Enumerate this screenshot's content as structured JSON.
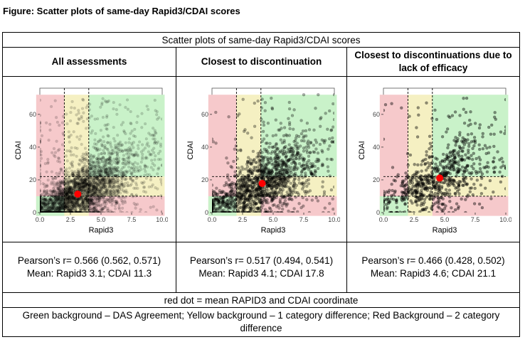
{
  "figure_title": "Figure: Scatter plots of same-day Rapid3/CDAI scores",
  "table_caption": "Scatter plots of same-day Rapid3/CDAI scores",
  "colors": {
    "green_bg": "#c9f2c9",
    "yellow_bg": "#f5f0c2",
    "red_bg": "#f6c9cb",
    "mean_dot": "#ff0000",
    "points": "#000000"
  },
  "chart_data": [
    {
      "type": "scatter",
      "title": "All assessments",
      "xlabel": "Rapid3",
      "ylabel": "CDAI",
      "xlim": [
        0,
        10
      ],
      "ylim": [
        0,
        76
      ],
      "xticks": [
        "0.0",
        "2.5",
        "5.0",
        "7.5",
        "10.0"
      ],
      "yticks": [
        "0",
        "20",
        "40",
        "60"
      ],
      "x_cutoffs": [
        2,
        4
      ],
      "y_cutoffs": [
        10,
        22
      ],
      "mean": {
        "x": 3.1,
        "y": 11.3
      },
      "n_points": 3200,
      "pearson_text": "Pearson’s r= 0.566 (0.562, 0.571)",
      "mean_text": "Mean: Rapid3 3.1; CDAI 11.3"
    },
    {
      "type": "scatter",
      "title": "Closest to discontinuation",
      "xlabel": "Rapid3",
      "ylabel": "CDAI",
      "xlim": [
        0,
        10
      ],
      "ylim": [
        0,
        76
      ],
      "xticks": [
        "0.0",
        "2.5",
        "5.0",
        "7.5",
        "10.0"
      ],
      "yticks": [
        "0",
        "20",
        "40",
        "60"
      ],
      "x_cutoffs": [
        2,
        4
      ],
      "y_cutoffs": [
        10,
        22
      ],
      "mean": {
        "x": 4.1,
        "y": 17.8
      },
      "n_points": 1500,
      "pearson_text": "Pearson’s r= 0.517 (0.494, 0.541)",
      "mean_text": "Mean: Rapid3 4.1; CDAI 17.8"
    },
    {
      "type": "scatter",
      "title": "Closest to discontinuations due to lack of efficacy",
      "xlabel": "Rapid3",
      "ylabel": "CDAI",
      "xlim": [
        0,
        10
      ],
      "ylim": [
        0,
        76
      ],
      "xticks": [
        "0.0",
        "2.5",
        "5.0",
        "7.5",
        "10.0"
      ],
      "yticks": [
        "0",
        "20",
        "40",
        "60"
      ],
      "x_cutoffs": [
        2,
        4
      ],
      "y_cutoffs": [
        10,
        22
      ],
      "mean": {
        "x": 4.6,
        "y": 21.1
      },
      "n_points": 700,
      "pearson_text": "Pearson’s r= 0.466 (0.428, 0.502)",
      "mean_text": "Mean: Rapid3 4.6; CDAI 21.1"
    }
  ],
  "footnote_dot": "red dot = mean RAPID3 and CDAI coordinate",
  "footnote_colors": "Green background – DAS Agreement; Yellow background – 1 category difference; Red Background – 2 category difference"
}
